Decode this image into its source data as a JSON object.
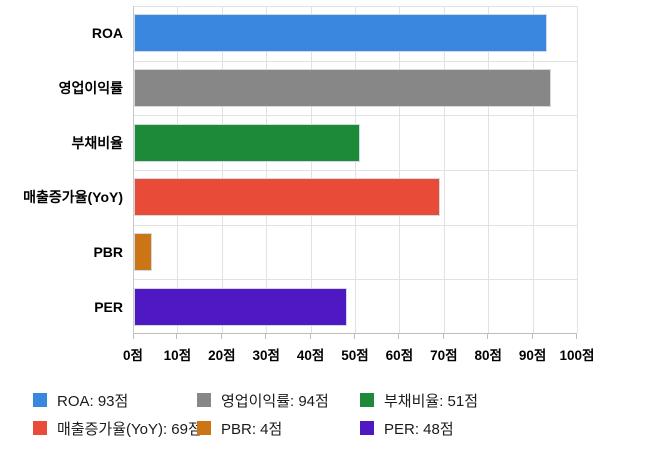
{
  "chart_data": {
    "type": "bar",
    "orientation": "horizontal",
    "title": "",
    "xlabel": "",
    "ylabel": "",
    "unit": "점",
    "categories": [
      "ROA",
      "영업이익률",
      "부채비율",
      "매출증가율(YoY)",
      "PBR",
      "PER"
    ],
    "values": [
      93,
      94,
      51,
      69,
      4,
      48
    ],
    "colors": [
      "#3a87e0",
      "#878787",
      "#1d8a38",
      "#e84b38",
      "#cc7517",
      "#4e18c2"
    ],
    "xlim": [
      0,
      100
    ],
    "tick_step": 10,
    "x_tick_labels": [
      "0점",
      "10점",
      "20점",
      "30점",
      "40점",
      "50점",
      "60점",
      "70점",
      "80점",
      "90점",
      "100점"
    ],
    "grid": true,
    "legend_position": "bottom",
    "legend": {
      "items": [
        {
          "label": "ROA: 93점",
          "color": "#3a87e0"
        },
        {
          "label": "영업이익률: 94점",
          "color": "#878787"
        },
        {
          "label": "부채비율: 51점",
          "color": "#1d8a38"
        },
        {
          "label": "매출증가율(YoY): 69점",
          "color": "#e84b38"
        },
        {
          "label": "PBR: 4점",
          "color": "#cc7517"
        },
        {
          "label": "PER: 48점",
          "color": "#4e18c2"
        }
      ]
    }
  }
}
